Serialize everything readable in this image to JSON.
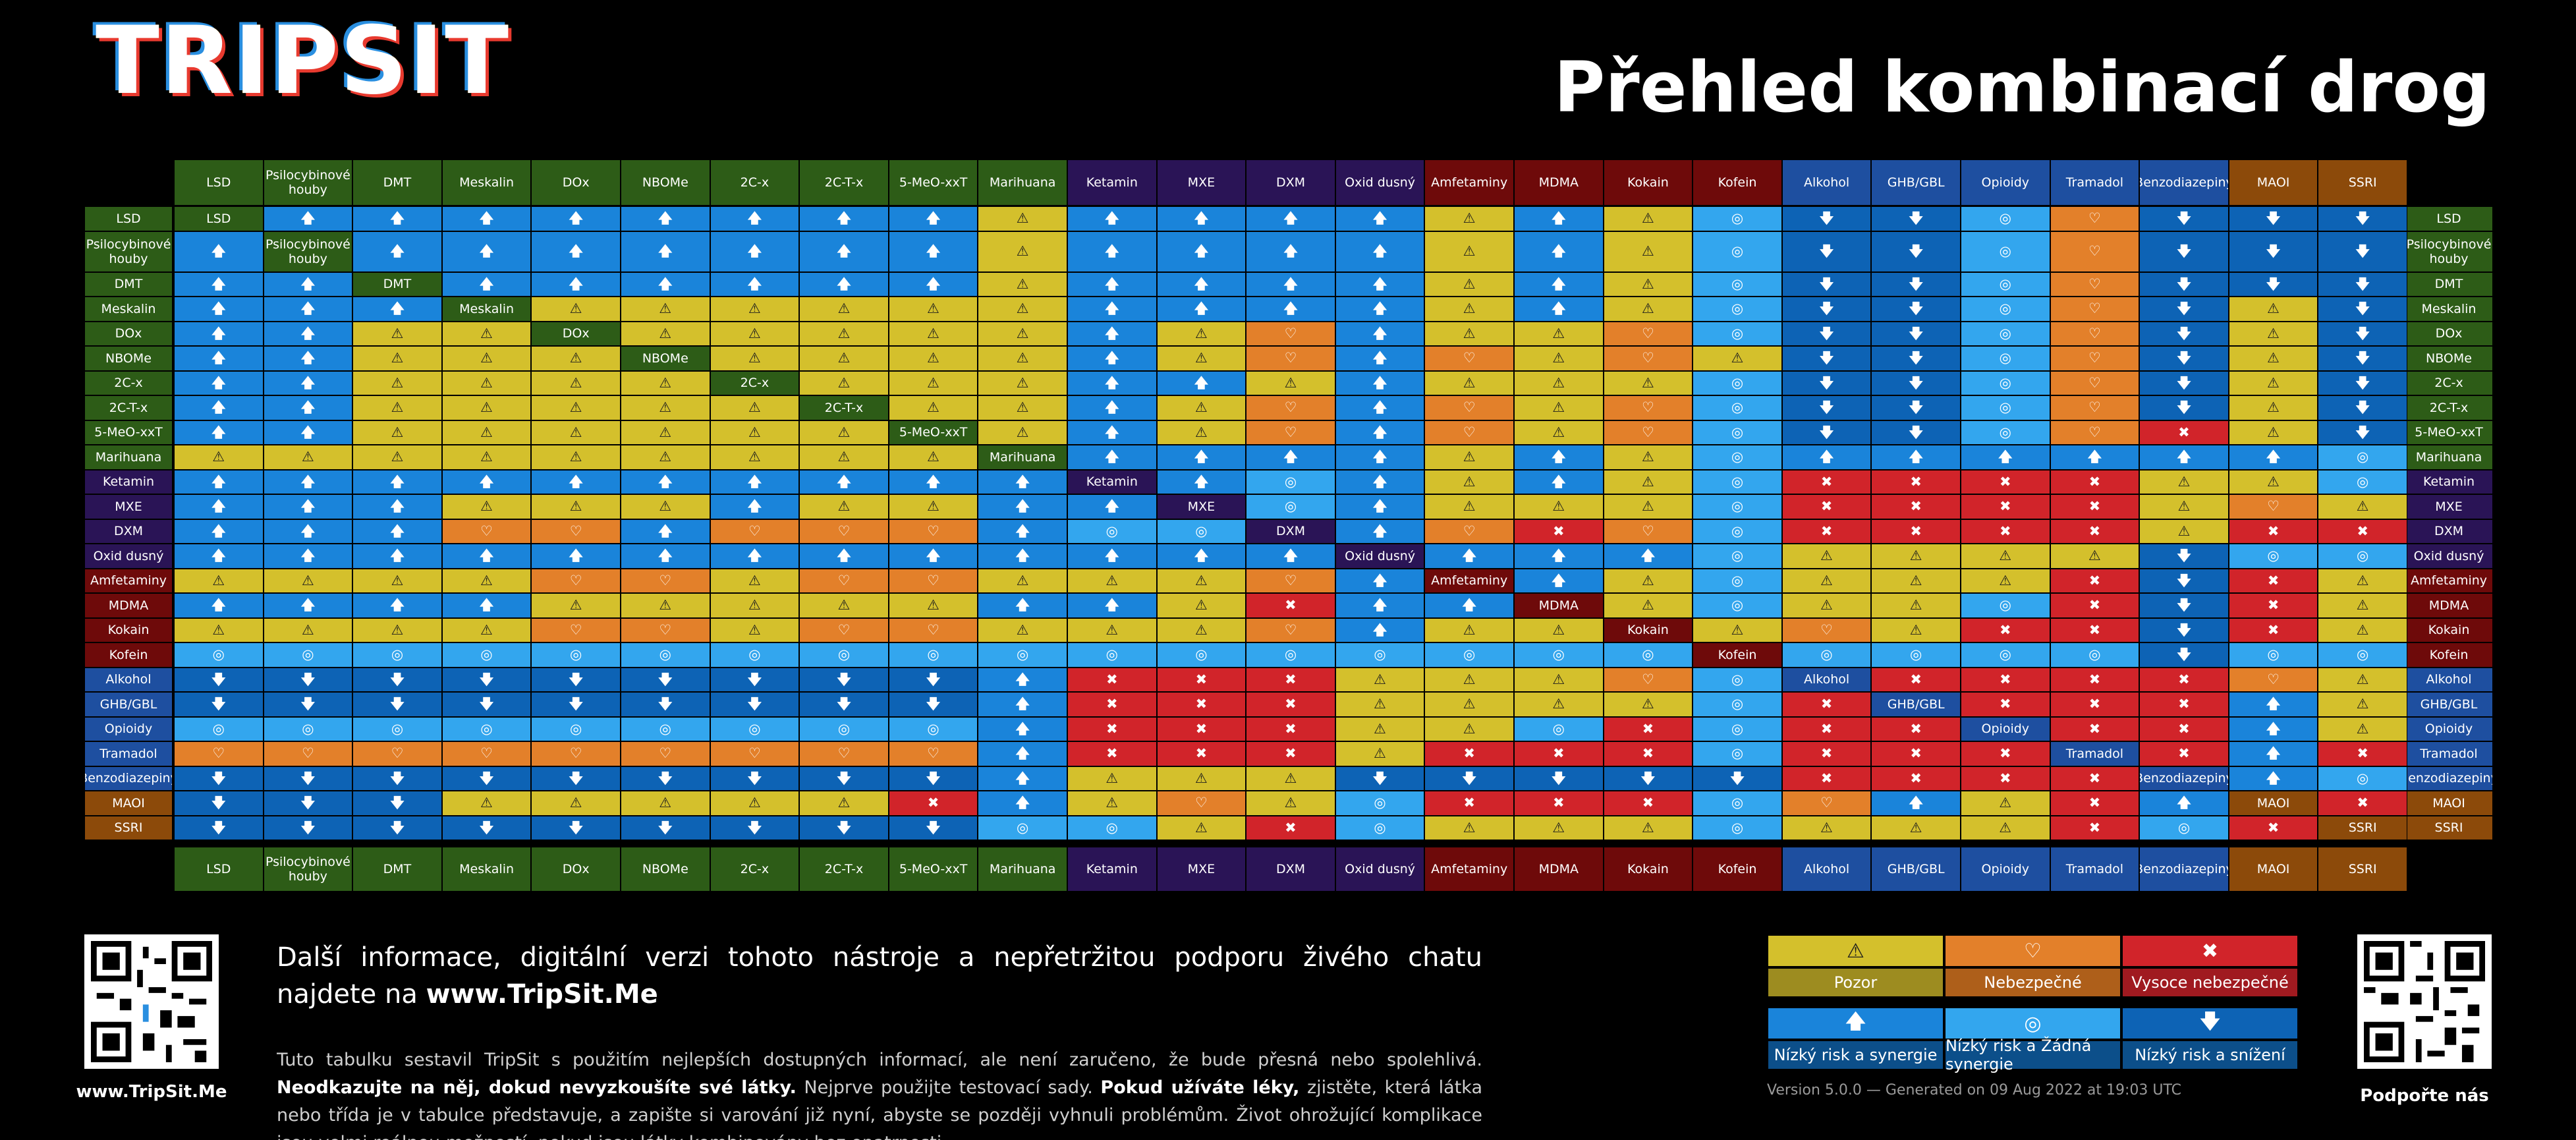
{
  "header": {
    "logo": "TRIPSIT",
    "title": "Přehled kombinací drog"
  },
  "colors": {
    "psychedelic": "#2d5c17",
    "dissociative": "#2a1456",
    "stimulant": "#6e0a0a",
    "depressant": "#1e4fa0",
    "serotonergic": "#8c4a0a",
    "caution": "#d4c02c",
    "caution_label": "#9d8c20",
    "unsafe": "#e3802a",
    "unsafe_label": "#ae5f1a",
    "dangerous": "#d1242a",
    "dangerous_label": "#a01a20",
    "low_risk_synergy": "#1a84da",
    "low_risk_no_synergy": "#33a6ee",
    "low_risk_decrease": "#0d63b5",
    "legend_label_blue": "#0c4f8a"
  },
  "substances": [
    {
      "label": "LSD",
      "group": "psychedelic"
    },
    {
      "label": "Psilocybinové houby",
      "group": "psychedelic"
    },
    {
      "label": "DMT",
      "group": "psychedelic"
    },
    {
      "label": "Meskalin",
      "group": "psychedelic"
    },
    {
      "label": "DOx",
      "group": "psychedelic"
    },
    {
      "label": "NBOMe",
      "group": "psychedelic"
    },
    {
      "label": "2C-x",
      "group": "psychedelic"
    },
    {
      "label": "2C-T-x",
      "group": "psychedelic"
    },
    {
      "label": "5-MeO-xxT",
      "group": "psychedelic"
    },
    {
      "label": "Marihuana",
      "group": "psychedelic"
    },
    {
      "label": "Ketamin",
      "group": "dissociative"
    },
    {
      "label": "MXE",
      "group": "dissociative"
    },
    {
      "label": "DXM",
      "group": "dissociative"
    },
    {
      "label": "Oxid dusný",
      "group": "dissociative"
    },
    {
      "label": "Amfetaminy",
      "group": "stimulant"
    },
    {
      "label": "MDMA",
      "group": "stimulant"
    },
    {
      "label": "Kokain",
      "group": "stimulant"
    },
    {
      "label": "Kofein",
      "group": "stimulant"
    },
    {
      "label": "Alkohol",
      "group": "depressant"
    },
    {
      "label": "GHB/GBL",
      "group": "depressant"
    },
    {
      "label": "Opioidy",
      "group": "depressant"
    },
    {
      "label": "Tramadol",
      "group": "depressant"
    },
    {
      "label": "Benzodiazepiny",
      "group": "depressant"
    },
    {
      "label": "MAOI",
      "group": "serotonergic"
    },
    {
      "label": "SSRI",
      "group": "serotonergic"
    }
  ],
  "matrix_legend_key": "S=low risk & synergy, N=low risk & no synergy, D=low risk & decrease, C=caution, U=unsafe, X=dangerous, '-'=self",
  "matrix": [
    "-SSSSSSSSCSSSSCSCNDDNUDDD",
    "S-SSSSSSSCSSSSCSCNDDNUDDD",
    "SS-SSSSSSCSSSSCSCNDDNUDDD",
    "SSS-CCCCCCSSSSCSCNDDNUDCD",
    "SSCC-CCCCCSCUSCCUNDDNUDCD",
    "SSCCC-CCCCSCUSUCUCDDNUDCD",
    "SSCCCC-CCCSSCSCCCNDDNUDCD",
    "SSCCCCC-CCSCUSUCUNDDNUDCD",
    "SSCCCCCC-CSCUSUCUNDDNUXCD",
    "CCCCCCCCC-SSSSCSCNSSSSSSN",
    "SSSSSSSSSS-SNSCSCNXXXXCCN",
    "SSSCCCSCCSS-NSCCCNXXXXCUC",
    "SSSUUSUUUSNN-SUXUNXXXXCXX",
    "SSSSSSSSSSSSS-SSSNCCCCDNN",
    "CCCCUUCUUCCCUS-SCNCCCXDXC",
    "SSSSCCCCCSSCXSS-CNCCNXDXC",
    "CCCCUUCUUCCCUSCC-CUCXXDXC",
    "NNNNNNNNNNNNNNNNN-NNNNDNN",
    "DDDDDDDDDSXXXCCCUN-XXXXUC",
    "DDDDDDDDDSXXXCCCCNX-XXXSC",
    "NNNNNNNNNSXXXCCNXNXX-XXSC",
    "UUUUUUUUUSXXXCXXXNXXX-XSX",
    "DDDDDDDDDSCCCDDDDDXXXX-SN",
    "DDDCCCCCXSCUCNXXXNUSCXS-X",
    "DDDDDDDDDNNCXNCCCNCCCXNX-"
  ],
  "symbols": {
    "S": "🡅",
    "N": "◎",
    "D": "🡇",
    "C": "⚠",
    "U": "♡",
    "X": "✖"
  },
  "legend": [
    {
      "key": "caution",
      "label": "Pozor",
      "symbol": "⚠"
    },
    {
      "key": "unsafe",
      "label": "Nebezpečné",
      "symbol": "♡"
    },
    {
      "key": "dangerous",
      "label": "Vysoce nebezpečné",
      "symbol": "✖"
    },
    {
      "key": "low_risk_synergy",
      "label": "Nízký risk a synergie",
      "symbol": "🡅"
    },
    {
      "key": "low_risk_no_synergy",
      "label": "Nízký risk a Žádná synergie",
      "symbol": "◎"
    },
    {
      "key": "low_risk_decrease",
      "label": "Nízký risk a snížení",
      "symbol": "🡇"
    }
  ],
  "footer": {
    "info_line": "Další informace, digitální verzi tohoto nástroje a nepřetržitou podporu živého chatu najdete na",
    "info_url": "www.TripSit.Me",
    "disclaimer_1": "Tuto tabulku sestavil TripSit s použitím nejlepších dostupných informací, ale není zaručeno, že bude přesná nebo spolehlivá.",
    "disclaimer_b1": "Neodkazujte na něj, dokud nevyzkoušíte své látky.",
    "disclaimer_2": "Nejprve použijte testovací sady.",
    "disclaimer_b2": "Pokud užíváte léky,",
    "disclaimer_3": "zjistěte, která látka nebo třída je v tabulce představuje, a zapište si varování již nyní, abyste se později vyhnuli problémům. Život ohrožující komplikace jsou velmi reálnou možností, pokud jsou látky kombinovány bez opatrnosti.",
    "qr_left_caption": "www.TripSit.Me",
    "qr_right_caption": "Podpořte nás",
    "version": "Version 5.0.0 — Generated on 09 Aug 2022 at 19:03 UTC"
  }
}
